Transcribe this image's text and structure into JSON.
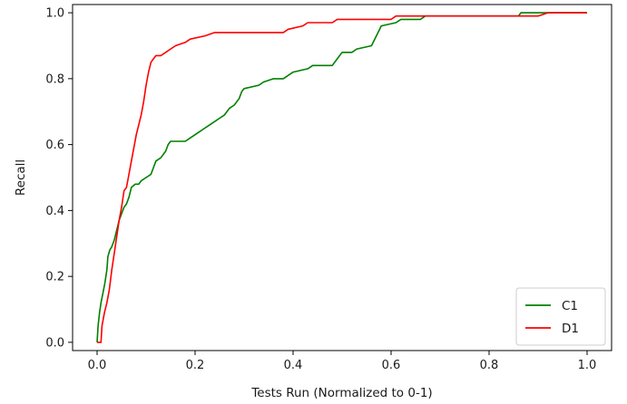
{
  "chart_data": {
    "type": "line",
    "title": "",
    "xlabel": "Tests Run (Normalized to 0-1)",
    "ylabel": "Recall",
    "xlim": [
      -0.05,
      1.05
    ],
    "ylim": [
      -0.025,
      1.025
    ],
    "xticks": [
      0.0,
      0.2,
      0.4,
      0.6,
      0.8,
      1.0
    ],
    "yticks": [
      0.0,
      0.2,
      0.4,
      0.6,
      0.8,
      1.0
    ],
    "xtick_labels": [
      "0.0",
      "0.2",
      "0.4",
      "0.6",
      "0.8",
      "1.0"
    ],
    "ytick_labels": [
      "0.0",
      "0.2",
      "0.4",
      "0.6",
      "0.8",
      "1.0"
    ],
    "grid": false,
    "legend": "lower-right",
    "series": [
      {
        "name": "C1",
        "color": "#008000",
        "points": [
          [
            0.0,
            0.0
          ],
          [
            0.002,
            0.05
          ],
          [
            0.005,
            0.09
          ],
          [
            0.008,
            0.12
          ],
          [
            0.012,
            0.15
          ],
          [
            0.016,
            0.18
          ],
          [
            0.02,
            0.22
          ],
          [
            0.022,
            0.26
          ],
          [
            0.026,
            0.28
          ],
          [
            0.03,
            0.29
          ],
          [
            0.035,
            0.31
          ],
          [
            0.04,
            0.34
          ],
          [
            0.045,
            0.37
          ],
          [
            0.05,
            0.39
          ],
          [
            0.055,
            0.41
          ],
          [
            0.06,
            0.42
          ],
          [
            0.065,
            0.44
          ],
          [
            0.07,
            0.47
          ],
          [
            0.078,
            0.48
          ],
          [
            0.085,
            0.48
          ],
          [
            0.09,
            0.49
          ],
          [
            0.1,
            0.5
          ],
          [
            0.11,
            0.51
          ],
          [
            0.115,
            0.53
          ],
          [
            0.12,
            0.55
          ],
          [
            0.13,
            0.56
          ],
          [
            0.14,
            0.58
          ],
          [
            0.145,
            0.6
          ],
          [
            0.15,
            0.61
          ],
          [
            0.18,
            0.61
          ],
          [
            0.19,
            0.62
          ],
          [
            0.2,
            0.63
          ],
          [
            0.21,
            0.64
          ],
          [
            0.22,
            0.65
          ],
          [
            0.23,
            0.66
          ],
          [
            0.24,
            0.67
          ],
          [
            0.25,
            0.68
          ],
          [
            0.26,
            0.69
          ],
          [
            0.27,
            0.71
          ],
          [
            0.28,
            0.72
          ],
          [
            0.29,
            0.74
          ],
          [
            0.295,
            0.76
          ],
          [
            0.3,
            0.77
          ],
          [
            0.33,
            0.78
          ],
          [
            0.34,
            0.79
          ],
          [
            0.36,
            0.8
          ],
          [
            0.38,
            0.8
          ],
          [
            0.4,
            0.82
          ],
          [
            0.43,
            0.83
          ],
          [
            0.44,
            0.84
          ],
          [
            0.48,
            0.84
          ],
          [
            0.49,
            0.86
          ],
          [
            0.5,
            0.88
          ],
          [
            0.52,
            0.88
          ],
          [
            0.53,
            0.89
          ],
          [
            0.56,
            0.9
          ],
          [
            0.57,
            0.93
          ],
          [
            0.58,
            0.96
          ],
          [
            0.61,
            0.97
          ],
          [
            0.62,
            0.98
          ],
          [
            0.66,
            0.98
          ],
          [
            0.67,
            0.99
          ],
          [
            0.86,
            0.99
          ],
          [
            0.865,
            1.0
          ],
          [
            1.0,
            1.0
          ]
        ]
      },
      {
        "name": "D1",
        "color": "#ff0000",
        "points": [
          [
            0.0,
            0.0
          ],
          [
            0.008,
            0.0
          ],
          [
            0.01,
            0.05
          ],
          [
            0.015,
            0.09
          ],
          [
            0.02,
            0.12
          ],
          [
            0.025,
            0.16
          ],
          [
            0.03,
            0.22
          ],
          [
            0.035,
            0.27
          ],
          [
            0.04,
            0.32
          ],
          [
            0.045,
            0.37
          ],
          [
            0.05,
            0.41
          ],
          [
            0.055,
            0.46
          ],
          [
            0.06,
            0.47
          ],
          [
            0.065,
            0.51
          ],
          [
            0.07,
            0.55
          ],
          [
            0.075,
            0.59
          ],
          [
            0.08,
            0.63
          ],
          [
            0.085,
            0.66
          ],
          [
            0.09,
            0.69
          ],
          [
            0.095,
            0.73
          ],
          [
            0.1,
            0.78
          ],
          [
            0.105,
            0.82
          ],
          [
            0.11,
            0.85
          ],
          [
            0.115,
            0.86
          ],
          [
            0.12,
            0.87
          ],
          [
            0.13,
            0.87
          ],
          [
            0.14,
            0.88
          ],
          [
            0.15,
            0.89
          ],
          [
            0.16,
            0.9
          ],
          [
            0.18,
            0.91
          ],
          [
            0.19,
            0.92
          ],
          [
            0.22,
            0.93
          ],
          [
            0.24,
            0.94
          ],
          [
            0.38,
            0.94
          ],
          [
            0.39,
            0.95
          ],
          [
            0.42,
            0.96
          ],
          [
            0.43,
            0.97
          ],
          [
            0.48,
            0.97
          ],
          [
            0.49,
            0.98
          ],
          [
            0.6,
            0.98
          ],
          [
            0.61,
            0.99
          ],
          [
            0.9,
            0.99
          ],
          [
            0.92,
            1.0
          ],
          [
            1.0,
            1.0
          ]
        ]
      }
    ]
  }
}
